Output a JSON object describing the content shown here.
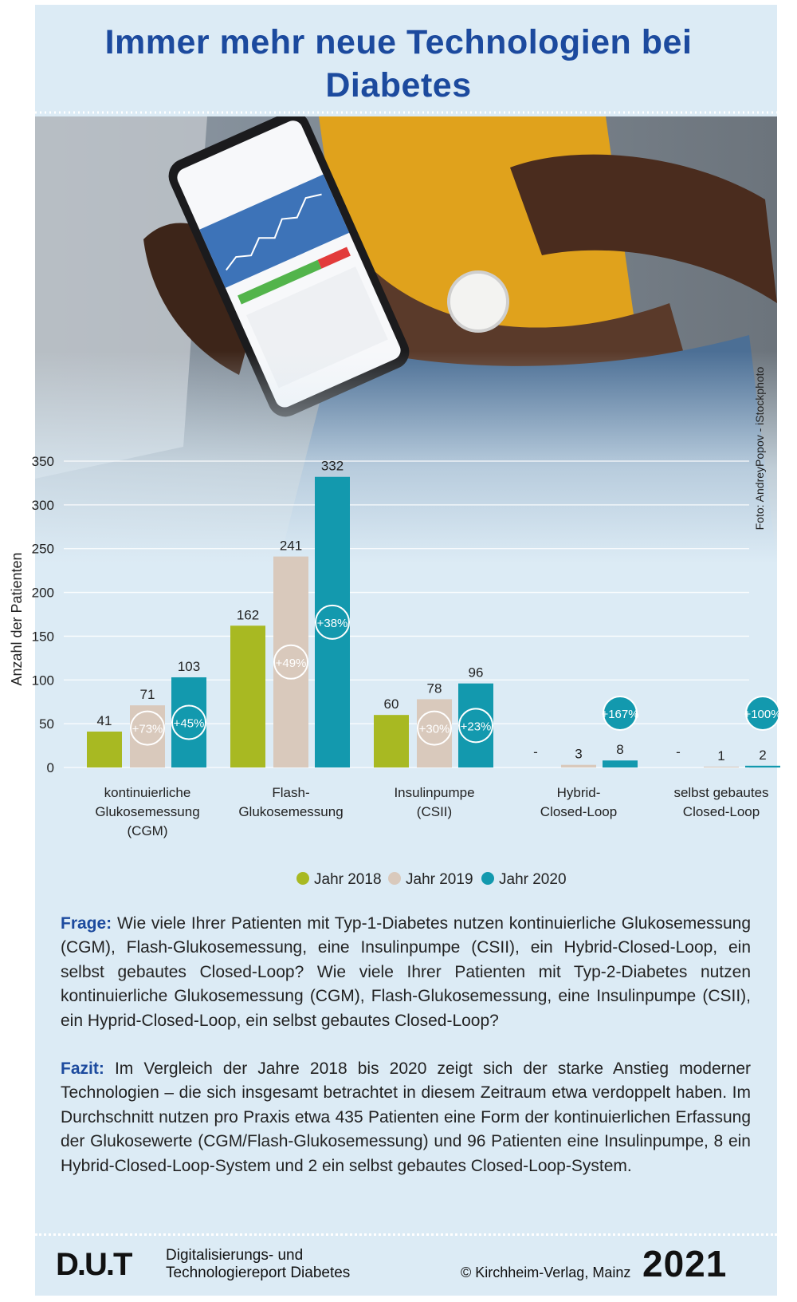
{
  "header": {
    "title": "Immer mehr neue Technologien bei Diabetes"
  },
  "photo_credit": "Foto: AndreyPopov - iStockphoto",
  "chart_data": {
    "type": "bar",
    "y_label": "Anzahl der Patienten",
    "categories": [
      [
        "kontinuierliche",
        "Glukosemessung",
        "(CGM)"
      ],
      [
        "Flash-",
        "Glukosemessung"
      ],
      [
        "Insulinpumpe",
        "(CSII)"
      ],
      [
        "Hybrid-",
        "Closed-Loop"
      ],
      [
        "selbst gebautes",
        "Closed-Loop"
      ]
    ],
    "series": [
      {
        "name": "Jahr 2018",
        "color": "#a8b922",
        "values": [
          41,
          162,
          60,
          null,
          null
        ],
        "value_labels": [
          "41",
          "162",
          "60",
          "-",
          "-"
        ]
      },
      {
        "name": "Jahr 2019",
        "color": "#d9c9bc",
        "values": [
          71,
          241,
          78,
          3,
          1
        ],
        "changes": [
          "+73%",
          "+49%",
          "+30%",
          null,
          null
        ]
      },
      {
        "name": "Jahr 2020",
        "color": "#1399ae",
        "values": [
          103,
          332,
          96,
          8,
          2
        ],
        "changes": [
          "+45%",
          "+38%",
          "+23%",
          "+167%",
          "+100%"
        ]
      }
    ],
    "ylim": [
      0,
      350
    ],
    "yticks": [
      0,
      50,
      100,
      150,
      200,
      250,
      300,
      350
    ],
    "grid": true
  },
  "text": {
    "question_label": "Frage:",
    "question": "Wie viele Ihrer Patienten mit Typ-1-Diabetes nutzen kontinuierliche Glukosemessung (CGM), Flash-Glukosemessung, eine Insulinpumpe (CSII), ein Hybrid-Closed-Loop, ein selbst gebautes Closed-Loop? Wie viele Ihrer Patienten mit Typ-2-Diabetes nutzen kontinuierliche Glukosemessung (CGM), Flash-Glukosemessung, eine Insulinpumpe (CSII), ein Hyprid-Closed-Loop, ein selbst gebautes Closed-Loop?",
    "conclusion_label": "Fazit:",
    "conclusion": "Im Vergleich der Jahre 2018 bis 2020 zeigt sich der starke Anstieg moderner Technologien – die sich insgesamt betrachtet in diesem Zeitraum etwa verdoppelt haben. Im Durchschnitt nutzen pro Praxis etwa 435 Patienten eine Form der kontinuierlichen Erfassung der Glukosewerte (CGM/Flash-Glukosemessung) und 96 Patienten eine Insulinpumpe, 8 ein Hybrid-Closed-Loop-System und 2 ein selbst gebautes Closed-Loop-System."
  },
  "footer": {
    "logo": "D.U.T",
    "report_lines": [
      "Digitalisierungs- und",
      "Technologiereport Diabetes"
    ],
    "copyright": "© Kirchheim-Verlag, Mainz",
    "year": "2021"
  }
}
